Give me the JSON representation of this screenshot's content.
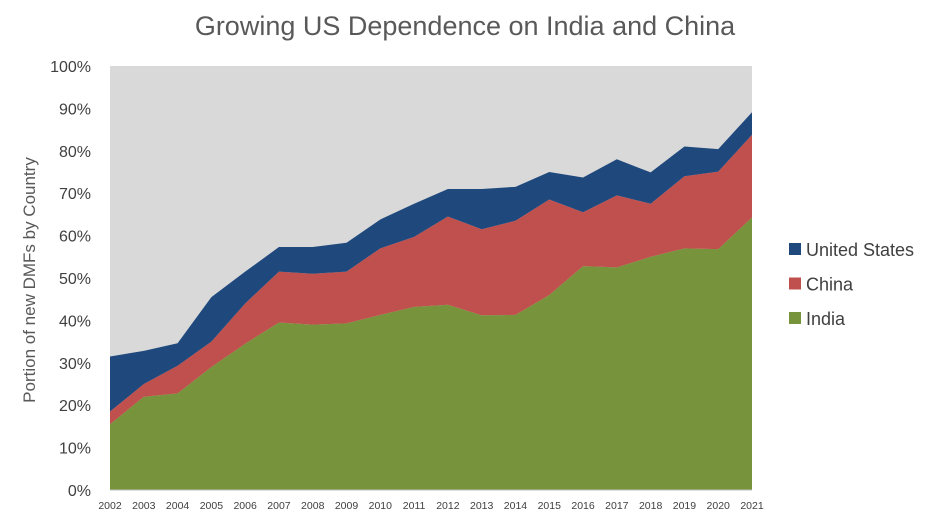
{
  "chart_data": {
    "type": "area",
    "stacked": true,
    "title": "Growing US Dependence on India and China",
    "xlabel": "",
    "ylabel": "Portion of new DMFs by Country",
    "ylim": [
      0,
      1
    ],
    "y_ticks": [
      "0%",
      "10%",
      "20%",
      "30%",
      "40%",
      "50%",
      "60%",
      "70%",
      "80%",
      "90%",
      "100%"
    ],
    "x": [
      "2002",
      "2003",
      "2004",
      "2005",
      "2006",
      "2007",
      "2008",
      "2009",
      "2010",
      "2011",
      "2012",
      "2013",
      "2014",
      "2015",
      "2016",
      "2017",
      "2018",
      "2019",
      "2020",
      "2021"
    ],
    "series": [
      {
        "name": "India",
        "color": "#77933C",
        "values": [
          0.155,
          0.22,
          0.228,
          0.29,
          0.345,
          0.395,
          0.39,
          0.393,
          0.413,
          0.432,
          0.437,
          0.412,
          0.413,
          0.46,
          0.528,
          0.525,
          0.55,
          0.57,
          0.568,
          0.643
        ]
      },
      {
        "name": "China",
        "color": "#C0504D",
        "values": [
          0.03,
          0.03,
          0.065,
          0.06,
          0.095,
          0.12,
          0.12,
          0.122,
          0.157,
          0.165,
          0.208,
          0.203,
          0.222,
          0.225,
          0.127,
          0.17,
          0.125,
          0.17,
          0.183,
          0.195
        ]
      },
      {
        "name": "United States",
        "color": "#1F497D",
        "values": [
          0.13,
          0.078,
          0.053,
          0.105,
          0.075,
          0.058,
          0.063,
          0.068,
          0.068,
          0.078,
          0.065,
          0.095,
          0.08,
          0.065,
          0.082,
          0.085,
          0.074,
          0.07,
          0.053,
          0.053
        ]
      }
    ],
    "plot_background": "#D9D9D9",
    "grid": false,
    "legend": {
      "position": "right",
      "order": [
        "United States",
        "China",
        "India"
      ]
    }
  }
}
